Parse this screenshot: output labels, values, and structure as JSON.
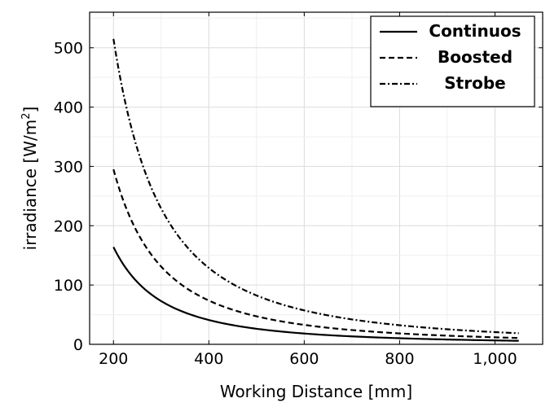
{
  "chart_data": {
    "type": "line",
    "title": "",
    "xlabel": "Working Distance [mm]",
    "ylabel_main": "irradiance [W/m",
    "ylabel_sup": "2",
    "ylabel_close": "]",
    "xlim": [
      150,
      1100
    ],
    "ylim": [
      0,
      560
    ],
    "xticks": [
      200,
      400,
      600,
      800,
      1000
    ],
    "xtick_labels": [
      "200",
      "400",
      "600",
      "800",
      "1,000"
    ],
    "yticks": [
      0,
      100,
      200,
      300,
      400,
      500
    ],
    "ytick_labels": [
      "0",
      "100",
      "200",
      "300",
      "400",
      "500"
    ],
    "grid": true,
    "legend_position": "top-right",
    "x": [
      200,
      250,
      300,
      350,
      400,
      450,
      500,
      550,
      600,
      650,
      700,
      750,
      800,
      850,
      900,
      950,
      1000,
      1050
    ],
    "series": [
      {
        "name": "Continuos",
        "dash": "solid",
        "color": "#000000",
        "values": [
          164,
          105,
          72.9,
          53.6,
          41,
          32.4,
          26.2,
          21.7,
          18.2,
          15.5,
          13.4,
          11.7,
          10.3,
          9.1,
          8.1,
          7.3,
          6.6,
          5.9
        ]
      },
      {
        "name": "Boosted",
        "dash": "dashed",
        "color": "#000000",
        "values": [
          295,
          188.8,
          131.1,
          96.3,
          73.8,
          58.3,
          47.2,
          39,
          32.8,
          27.9,
          24.1,
          21,
          18.4,
          16.3,
          14.6,
          13.1,
          11.8,
          10.7
        ]
      },
      {
        "name": "Strobe",
        "dash": "dashdot",
        "color": "#000000",
        "values": [
          515,
          329.6,
          228.9,
          168.2,
          128.8,
          101.7,
          82.4,
          68.1,
          57.2,
          48.8,
          42,
          36.6,
          32.2,
          28.5,
          25.4,
          22.8,
          20.6,
          18.7
        ]
      }
    ]
  }
}
